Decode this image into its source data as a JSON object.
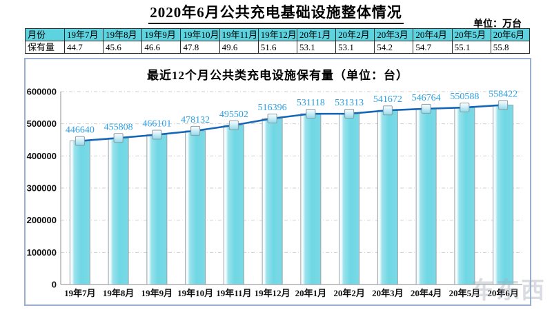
{
  "page_title": "2020年6月公共充电基础设施整体情况",
  "unit_label": "单位：万台",
  "table": {
    "row1_header": "月份",
    "row2_header": "保有量",
    "months": [
      "19年7月",
      "19年8月",
      "19年9月",
      "19年10月",
      "19年11月",
      "19年12月",
      "20年1月",
      "20年2月",
      "20年3月",
      "20年4月",
      "20年5月",
      "20年6月"
    ],
    "values": [
      "44.7",
      "45.6",
      "46.6",
      "47.8",
      "49.6",
      "51.6",
      "53.1",
      "53.1",
      "54.2",
      "54.7",
      "55.1",
      "55.8"
    ]
  },
  "chart_data": {
    "type": "bar",
    "title": "最近12个月公共类充电设施保有量（单位：台）",
    "categories": [
      "19年7月",
      "19年8月",
      "19年9月",
      "19年10月",
      "19年11月",
      "19年12月",
      "20年1月",
      "20年2月",
      "20年3月",
      "20年4月",
      "20年5月",
      "20年6月"
    ],
    "values": [
      446640,
      455808,
      466101,
      478132,
      495502,
      516396,
      531118,
      531313,
      541672,
      546764,
      550588,
      558422
    ],
    "series_note": "bars with overlaid line and square markers, values labeled above points",
    "xlabel": "",
    "ylabel": "",
    "ylim": [
      0,
      600000
    ],
    "ytick_step": 100000,
    "grid": true,
    "legend": "none"
  },
  "colors": {
    "bar_fill": "#6FD7E4",
    "bar_edge": "#9AA2A7",
    "line": "#1566B6",
    "marker_edge": "#8C99A1",
    "data_label": "#2C9FE2",
    "table_header_bg": "#5CD3DE",
    "panel_border": "#9AAFD0",
    "gridline": "#CFCFCF",
    "axis": "#A0A0A0"
  },
  "watermark": "车东西"
}
